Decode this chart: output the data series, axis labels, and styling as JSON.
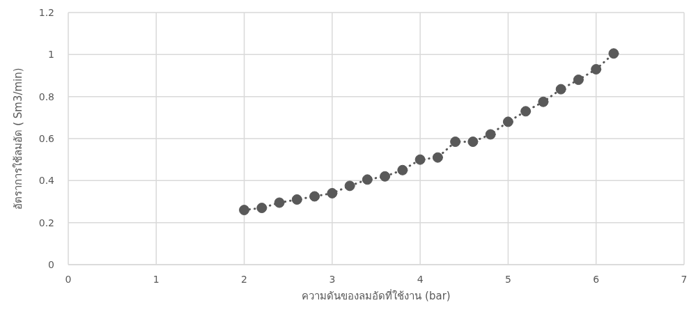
{
  "chart_data": {
    "type": "line",
    "xlabel": "ความดันของลมอัดที่ใช้งาน (bar)",
    "ylabel": "อัตราการใช้ลมอัด ( Sm3/min)",
    "x": [
      2,
      2.2,
      2.4,
      2.6,
      2.8,
      3,
      3.2,
      3.4,
      3.6,
      3.8,
      4,
      4.2,
      4.4,
      4.6,
      4.8,
      5,
      5.2,
      5.4,
      5.6,
      5.8,
      6,
      6.2
    ],
    "series": [
      {
        "color": "#595959",
        "values": [
          0.26,
          0.27,
          0.295,
          0.31,
          0.325,
          0.34,
          0.375,
          0.405,
          0.42,
          0.45,
          0.5,
          0.51,
          0.585,
          0.585,
          0.62,
          0.68,
          0.73,
          0.775,
          0.835,
          0.88,
          0.93,
          1.005
        ]
      }
    ],
    "xlim": [
      0,
      7
    ],
    "xticks": [
      0,
      1,
      2,
      3,
      4,
      5,
      6,
      7
    ],
    "ylim": [
      0,
      1.2
    ],
    "yticks": [
      0,
      0.2,
      0.4,
      0.6,
      0.8,
      1,
      1.2
    ],
    "grid": true,
    "marker": "circle",
    "line_style": "dotted"
  }
}
